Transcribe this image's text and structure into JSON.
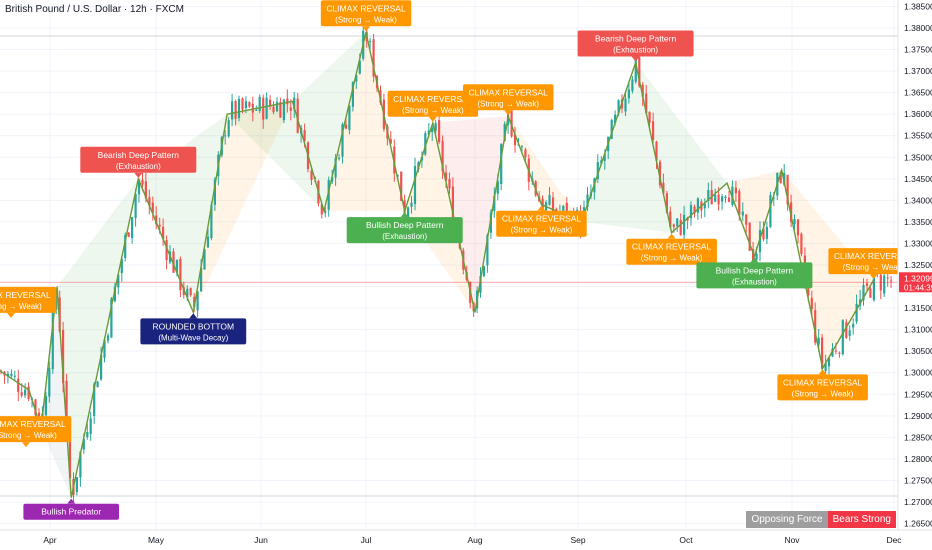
{
  "header": {
    "title": "British Pound / U.S. Dollar · 12h · FXCM"
  },
  "colors": {
    "up": "#26a69a",
    "down": "#ef5350",
    "zigzag": "#6a9a3a",
    "orange": "#ff9800",
    "red": "#ef5350",
    "green": "#4caf50",
    "navy": "#1a237e",
    "purple": "#9c27b0",
    "price_line": "#f23645"
  },
  "chart_data": {
    "type": "candlestick",
    "symbol": "GBPUSD",
    "x_ticks": [
      "Apr",
      "May",
      "Jun",
      "Jul",
      "Aug",
      "Sep",
      "Oct",
      "Nov",
      "Dec"
    ],
    "y_ticks": [
      "1.38500",
      "1.38000",
      "1.37500",
      "1.37000",
      "1.36500",
      "1.36000",
      "1.35500",
      "1.35000",
      "1.34500",
      "1.34000",
      "1.33500",
      "1.33000",
      "1.32500",
      "1.32000",
      "1.31500",
      "1.31000",
      "1.30500",
      "1.30000",
      "1.29500",
      "1.29000",
      "1.28500",
      "1.28000",
      "1.27500",
      "1.27000",
      "1.26500"
    ],
    "ylim": [
      1.2635,
      1.3865
    ],
    "current_price": {
      "value": "1.32099",
      "countdown": "01:44:39",
      "price": 1.32099
    },
    "zigzag": [
      {
        "date": "Mar 13",
        "price": 1.3015
      },
      {
        "date": "Mar 25",
        "price": 1.296
      },
      {
        "date": "Mar 29",
        "price": 1.287
      },
      {
        "date": "Apr 3",
        "price": 1.32
      },
      {
        "date": "Apr 7",
        "price": 1.271
      },
      {
        "date": "Apr 26",
        "price": 1.345
      },
      {
        "date": "May 12",
        "price": 1.314
      },
      {
        "date": "May 22",
        "price": 1.36
      },
      {
        "date": "Jun 10",
        "price": 1.363
      },
      {
        "date": "Jun 19",
        "price": 1.3375
      },
      {
        "date": "Jul 1",
        "price": 1.379
      },
      {
        "date": "Jul 12",
        "price": 1.3375
      },
      {
        "date": "Jul 20",
        "price": 1.358
      },
      {
        "date": "Aug 1",
        "price": 1.314
      },
      {
        "date": "Aug 11",
        "price": 1.3595
      },
      {
        "date": "Aug 21",
        "price": 1.339
      },
      {
        "date": "Sep 2",
        "price": 1.335
      },
      {
        "date": "Sep 17",
        "price": 1.372
      },
      {
        "date": "Sep 27",
        "price": 1.3325
      },
      {
        "date": "Oct 13",
        "price": 1.344
      },
      {
        "date": "Oct 21",
        "price": 1.327
      },
      {
        "date": "Oct 29",
        "price": 1.347
      },
      {
        "date": "Nov 10",
        "price": 1.301
      },
      {
        "date": "Nov 25",
        "price": 1.3215
      }
    ],
    "annotations": [
      {
        "date": "Mar 19",
        "price": 1.3125,
        "text": "CLIMAX REVERSAL",
        "sub": "(Strong → Weak)",
        "color": "orange",
        "side": "above"
      },
      {
        "date": "Mar 24",
        "price": 1.2825,
        "text": "CLIMAX REVERSAL",
        "sub": "(Strong → Weak)",
        "color": "orange",
        "side": "above"
      },
      {
        "date": "Apr 7",
        "price": 1.271,
        "text": "Bullish Predator",
        "sub": "",
        "color": "purple",
        "side": "below"
      },
      {
        "date": "Apr 26",
        "price": 1.345,
        "text": "Bearish Deep Pattern",
        "sub": "(Exhaustion)",
        "color": "red",
        "side": "above"
      },
      {
        "date": "May 12",
        "price": 1.314,
        "text": "ROUNDED BOTTOM",
        "sub": "(Multi-Wave Decay)",
        "color": "navy",
        "side": "below"
      },
      {
        "date": "Jul 1",
        "price": 1.379,
        "text": "CLIMAX REVERSAL",
        "sub": "(Strong → Weak)",
        "color": "orange",
        "side": "above"
      },
      {
        "date": "Jul 12",
        "price": 1.3375,
        "text": "Bullish Deep Pattern",
        "sub": "(Exhaustion)",
        "color": "green",
        "side": "below"
      },
      {
        "date": "Jul 20",
        "price": 1.358,
        "text": "CLIMAX REVERSAL",
        "sub": "(Strong → Weak)",
        "color": "orange",
        "side": "above"
      },
      {
        "date": "Aug 11",
        "price": 1.3595,
        "text": "CLIMAX REVERSAL",
        "sub": "(Strong → Weak)",
        "color": "orange",
        "side": "above"
      },
      {
        "date": "Aug 21",
        "price": 1.339,
        "text": "CLIMAX REVERSAL",
        "sub": "(Strong → Weak)",
        "color": "orange",
        "side": "below"
      },
      {
        "date": "Sep 17",
        "price": 1.372,
        "text": "Bearish Deep Pattern",
        "sub": "(Exhaustion)",
        "color": "red",
        "side": "above"
      },
      {
        "date": "Sep 27",
        "price": 1.3325,
        "text": "CLIMAX REVERSAL",
        "sub": "(Strong → Weak)",
        "color": "orange",
        "side": "below"
      },
      {
        "date": "Oct 21",
        "price": 1.327,
        "text": "Bullish Deep Pattern",
        "sub": "(Exhaustion)",
        "color": "green",
        "side": "below"
      },
      {
        "date": "Nov 10",
        "price": 1.301,
        "text": "CLIMAX REVERSAL",
        "sub": "(Strong → Weak)",
        "color": "orange",
        "side": "below"
      },
      {
        "date": "Nov 25",
        "price": 1.3215,
        "text": "CLIMAX REVERSAL",
        "sub": "(Strong → Weak)",
        "color": "orange",
        "side": "above"
      }
    ],
    "zones": [
      {
        "from": 2,
        "to": 4,
        "color": "gray"
      },
      {
        "from": 3,
        "to": 5,
        "color": "green"
      },
      {
        "from": 4,
        "to": 5,
        "color": "red"
      },
      {
        "from": 5,
        "to": 7,
        "color": "green"
      },
      {
        "from": 6,
        "to": 8,
        "color": "orange"
      },
      {
        "from": 7,
        "to": 9,
        "color": "green"
      },
      {
        "from": 8,
        "to": 10,
        "color": "green"
      },
      {
        "from": 9,
        "to": 11,
        "color": "orange"
      },
      {
        "from": 11,
        "to": 13,
        "color": "orange"
      },
      {
        "from": 12,
        "to": 14,
        "color": "red"
      },
      {
        "from": 14,
        "to": 16,
        "color": "orange"
      },
      {
        "from": 16,
        "to": 18,
        "color": "green"
      },
      {
        "from": 17,
        "to": 19,
        "color": "green"
      },
      {
        "from": 19,
        "to": 21,
        "color": "orange"
      },
      {
        "from": 21,
        "to": 23,
        "color": "orange"
      }
    ]
  },
  "status": {
    "left": "Opposing Force",
    "right": "Bears Strong"
  }
}
